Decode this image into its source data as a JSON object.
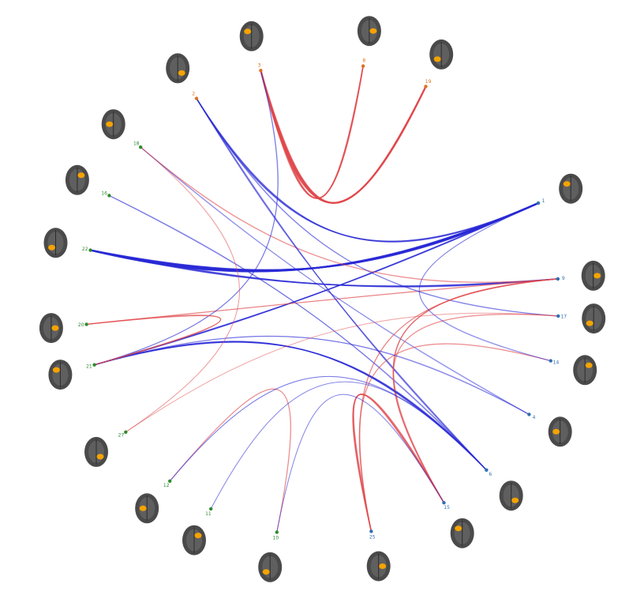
{
  "diagram": {
    "type": "hierarchical-edge-bundle-connectome",
    "colors": {
      "positive": "#e0484c",
      "negative": "#2a2ad6",
      "green_group": "#2e8b2e",
      "orange_group": "#e07020",
      "blue_group": "#2f6fb3",
      "brain_fill": "#4a4a4a",
      "activation": "#f5a300"
    },
    "nodes": [
      {
        "id": "n1",
        "label": "1",
        "group": "blue",
        "icon": "brain-map-icon"
      },
      {
        "id": "n2",
        "label": "9",
        "group": "blue",
        "icon": "brain-map-icon"
      },
      {
        "id": "n3",
        "label": "17",
        "group": "blue",
        "icon": "brain-map-icon"
      },
      {
        "id": "n4",
        "label": "14",
        "group": "blue",
        "icon": "brain-map-icon"
      },
      {
        "id": "n5",
        "label": "4",
        "group": "blue",
        "icon": "brain-map-icon"
      },
      {
        "id": "n6",
        "label": "6",
        "group": "blue",
        "icon": "brain-map-icon"
      },
      {
        "id": "n7",
        "label": "15",
        "group": "blue",
        "icon": "brain-map-icon"
      },
      {
        "id": "n8",
        "label": "25",
        "group": "blue",
        "icon": "brain-map-icon"
      },
      {
        "id": "n9",
        "label": "10",
        "group": "green",
        "icon": "brain-map-icon"
      },
      {
        "id": "n10",
        "label": "11",
        "group": "green",
        "icon": "brain-map-icon"
      },
      {
        "id": "n11",
        "label": "12",
        "group": "green",
        "icon": "brain-map-icon"
      },
      {
        "id": "n12",
        "label": "27",
        "group": "green",
        "icon": "brain-map-icon"
      },
      {
        "id": "n13",
        "label": "21",
        "group": "green",
        "icon": "brain-map-icon"
      },
      {
        "id": "n14",
        "label": "20",
        "group": "green",
        "icon": "brain-map-icon"
      },
      {
        "id": "n15",
        "label": "22",
        "group": "green",
        "icon": "brain-map-icon"
      },
      {
        "id": "n16",
        "label": "16",
        "group": "green",
        "icon": "brain-map-icon"
      },
      {
        "id": "n17",
        "label": "18",
        "group": "green",
        "icon": "brain-map-icon"
      },
      {
        "id": "n18",
        "label": "2",
        "group": "orange",
        "icon": "brain-map-icon"
      },
      {
        "id": "n19",
        "label": "3",
        "group": "orange",
        "icon": "brain-map-icon"
      },
      {
        "id": "n20",
        "label": "8",
        "group": "orange",
        "icon": "brain-map-icon"
      },
      {
        "id": "n21",
        "label": "19",
        "group": "orange",
        "icon": "brain-map-icon"
      }
    ],
    "edges": [
      {
        "from": "n15",
        "to": "n1",
        "sign": "negative",
        "weight": 0.95
      },
      {
        "from": "n15",
        "to": "n2",
        "sign": "negative",
        "weight": 0.55
      },
      {
        "from": "n13",
        "to": "n1",
        "sign": "negative",
        "weight": 0.5
      },
      {
        "from": "n13",
        "to": "n6",
        "sign": "negative",
        "weight": 0.45
      },
      {
        "from": "n14",
        "to": "n2",
        "sign": "positive",
        "weight": 0.35
      },
      {
        "from": "n16",
        "to": "n6",
        "sign": "negative",
        "weight": 0.35
      },
      {
        "from": "n17",
        "to": "n2",
        "sign": "positive",
        "weight": 0.3
      },
      {
        "from": "n17",
        "to": "n5",
        "sign": "negative",
        "weight": 0.25
      },
      {
        "from": "n18",
        "to": "n1",
        "sign": "negative",
        "weight": 0.5
      },
      {
        "from": "n18",
        "to": "n6",
        "sign": "negative",
        "weight": 0.4
      },
      {
        "from": "n18",
        "to": "n3",
        "sign": "negative",
        "weight": 0.3
      },
      {
        "from": "n19",
        "to": "n21",
        "sign": "positive",
        "weight": 0.85
      },
      {
        "from": "n19",
        "to": "n20",
        "sign": "positive",
        "weight": 0.6
      },
      {
        "from": "n19",
        "to": "n13",
        "sign": "negative",
        "weight": 0.3
      },
      {
        "from": "n2",
        "to": "n7",
        "sign": "positive",
        "weight": 0.4
      },
      {
        "from": "n2",
        "to": "n8",
        "sign": "positive",
        "weight": 0.35
      },
      {
        "from": "n3",
        "to": "n7",
        "sign": "positive",
        "weight": 0.3
      },
      {
        "from": "n4",
        "to": "n8",
        "sign": "positive",
        "weight": 0.3
      },
      {
        "from": "n4",
        "to": "n1",
        "sign": "negative",
        "weight": 0.25
      },
      {
        "from": "n5",
        "to": "n13",
        "sign": "negative",
        "weight": 0.3
      },
      {
        "from": "n6",
        "to": "n13",
        "sign": "negative",
        "weight": 0.45
      },
      {
        "from": "n8",
        "to": "n7",
        "sign": "positive",
        "weight": 0.55
      },
      {
        "from": "n11",
        "to": "n9",
        "sign": "positive",
        "weight": 0.3
      },
      {
        "from": "n11",
        "to": "n6",
        "sign": "negative",
        "weight": 0.25
      },
      {
        "from": "n10",
        "to": "n6",
        "sign": "negative",
        "weight": 0.2
      },
      {
        "from": "n9",
        "to": "n7",
        "sign": "negative",
        "weight": 0.2
      },
      {
        "from": "n13",
        "to": "n14",
        "sign": "positive",
        "weight": 0.4
      },
      {
        "from": "n12",
        "to": "n17",
        "sign": "positive",
        "weight": 0.2
      },
      {
        "from": "n12",
        "to": "n3",
        "sign": "positive",
        "weight": 0.15
      }
    ]
  }
}
